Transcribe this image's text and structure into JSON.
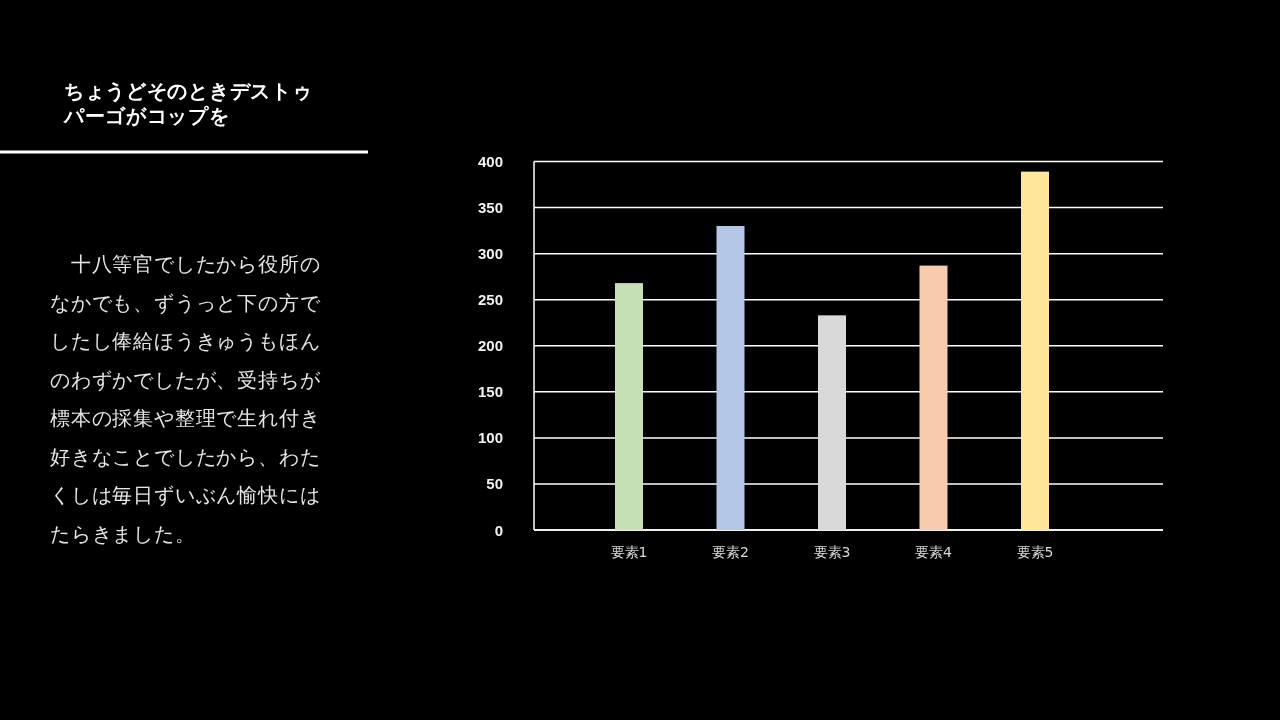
{
  "chart_data": {
    "type": "bar",
    "title": "ちょうどそのときデストゥパーゴがコップを",
    "annotations": [
      "　十八等官でしたから役所のなかでも、ずうっと下の方でしたし俸給ほうきゅうもほんのわずかでしたが、受持ちが標本の採集や整理で生れ付き好きなことでしたから、わたくしは毎日ずいぶん愉快にはたらきました。"
    ],
    "categories": [
      "要素1",
      "要素2",
      "要素3",
      "要素4",
      "要素5"
    ],
    "values": [
      268,
      330,
      233,
      287,
      389
    ],
    "colors": [
      "#c5e0b4",
      "#b4c7e7",
      "#d9d9d9",
      "#f8cbad",
      "#ffe699"
    ],
    "ylim": [
      0,
      400
    ],
    "yticks": [
      0,
      50,
      100,
      150,
      200,
      250,
      300,
      350,
      400
    ],
    "grid": "y"
  }
}
